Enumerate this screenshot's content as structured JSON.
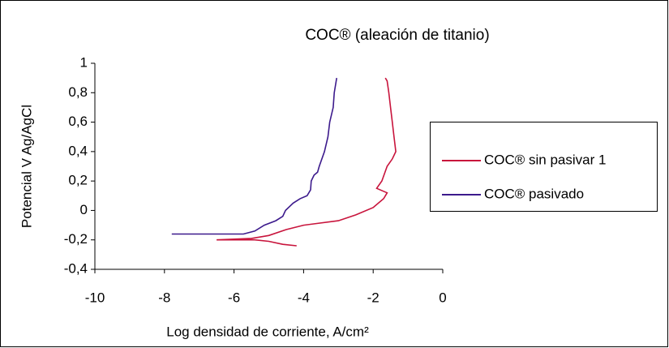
{
  "chart_data": {
    "type": "line",
    "title": "COC® (aleación de titanio)",
    "x_label": "Log densidad de corriente, A/cm²",
    "y_label": "Potencial V Ag/AgCl",
    "xlim": [
      -10,
      0
    ],
    "xticks": [
      -10,
      -8,
      -6,
      -4,
      -2,
      0
    ],
    "ylim": [
      -0.4,
      1
    ],
    "yticks": [
      {
        "value": -0.4,
        "label": "-0,4"
      },
      {
        "value": -0.2,
        "label": "-0,2"
      },
      0,
      {
        "value": 0.2,
        "label": "0,2"
      },
      {
        "value": 0.4,
        "label": "0,4"
      },
      {
        "value": 0.6,
        "label": "0,6"
      },
      {
        "value": 0.8,
        "label": "0,8"
      },
      1
    ],
    "legend": "right",
    "series": [
      {
        "name": "COC® sin pasivar 1",
        "color": "#c8143c",
        "x": [
          -4.2,
          -4.6,
          -5.0,
          -5.4,
          -6.5,
          -5.5,
          -5.0,
          -4.5,
          -4.0,
          -3.0,
          -2.5,
          -2.0,
          -1.7,
          -1.6,
          -1.9,
          -1.75,
          -1.6,
          -1.45,
          -1.35,
          -1.4,
          -1.45,
          -1.5,
          -1.55,
          -1.6,
          -1.65
        ],
        "values": [
          -0.24,
          -0.23,
          -0.21,
          -0.2,
          -0.2,
          -0.19,
          -0.17,
          -0.13,
          -0.1,
          -0.07,
          -0.03,
          0.02,
          0.08,
          0.12,
          0.15,
          0.2,
          0.3,
          0.35,
          0.4,
          0.5,
          0.6,
          0.7,
          0.8,
          0.88,
          0.9
        ]
      },
      {
        "name": "COC® pasivado",
        "color": "#3c1a8c",
        "x": [
          -7.79,
          -5.73,
          -5.4,
          -5.13,
          -4.8,
          -4.6,
          -4.52,
          -4.3,
          -4.1,
          -3.9,
          -3.8,
          -3.78,
          -3.7,
          -3.6,
          -3.55,
          -3.4,
          -3.3,
          -3.25,
          -3.15,
          -3.12,
          -3.05
        ],
        "values": [
          -0.16,
          -0.16,
          -0.14,
          -0.1,
          -0.07,
          -0.04,
          0.0,
          0.05,
          0.08,
          0.1,
          0.14,
          0.2,
          0.24,
          0.26,
          0.3,
          0.4,
          0.5,
          0.6,
          0.7,
          0.8,
          0.9
        ]
      }
    ]
  }
}
